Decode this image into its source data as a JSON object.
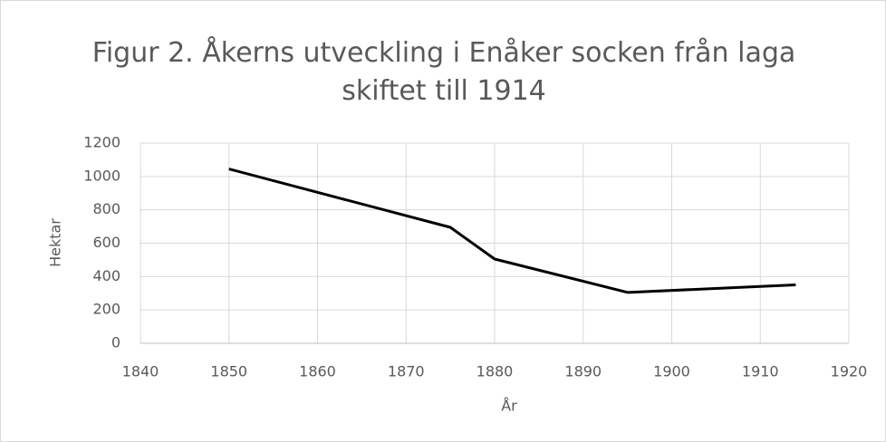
{
  "chart_data": {
    "type": "line",
    "title": "Figur 2. Åkerns utveckling i Enåker socken från laga skiftet till 1914",
    "x_label": "År",
    "y_label": "Hektar",
    "x": [
      1850,
      1875,
      1880,
      1895,
      1914
    ],
    "series": [
      {
        "name": "Hektar",
        "color": "#000000",
        "values": [
          1045,
          695,
          505,
          305,
          350
        ]
      }
    ],
    "xlim": [
      1840,
      1920
    ],
    "xticks": [
      1840,
      1850,
      1860,
      1870,
      1880,
      1890,
      1900,
      1910,
      1920
    ],
    "ylim": [
      0,
      1200
    ],
    "yticks": [
      0,
      200,
      400,
      600,
      800,
      1000,
      1200
    ],
    "grid": true
  }
}
